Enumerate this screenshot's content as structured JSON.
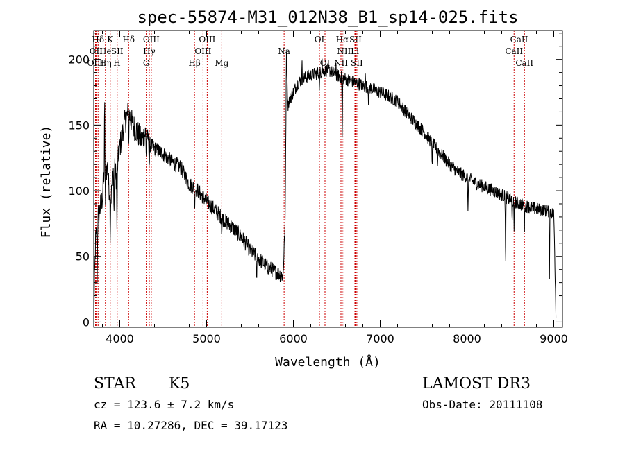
{
  "chart_data": {
    "type": "line",
    "title": "spec-55874-M31_012N38_B1_sp14-025.fits",
    "xlabel": "Wavelength (Å)",
    "ylabel": "Flux (relative)",
    "xlim": [
      3700,
      9100
    ],
    "ylim": [
      -4,
      222
    ],
    "xticks": [
      4000,
      5000,
      6000,
      7000,
      8000,
      9000
    ],
    "yticks": [
      0,
      50,
      100,
      150,
      200
    ],
    "grid": false,
    "legend": "none",
    "line_color": "#000000",
    "marker_color": "#cc0000",
    "spectrum_nodes": [
      [
        3700,
        5
      ],
      [
        3720,
        60
      ],
      [
        3750,
        80
      ],
      [
        3800,
        95
      ],
      [
        3830,
        125
      ],
      [
        3870,
        105
      ],
      [
        3900,
        95
      ],
      [
        3930,
        120
      ],
      [
        3960,
        110
      ],
      [
        3990,
        130
      ],
      [
        4050,
        150
      ],
      [
        4100,
        160
      ],
      [
        4150,
        150
      ],
      [
        4200,
        145
      ],
      [
        4250,
        138
      ],
      [
        4300,
        145
      ],
      [
        4350,
        135
      ],
      [
        4400,
        132
      ],
      [
        4500,
        128
      ],
      [
        4600,
        122
      ],
      [
        4700,
        118
      ],
      [
        4800,
        105
      ],
      [
        4900,
        100
      ],
      [
        5000,
        92
      ],
      [
        5100,
        85
      ],
      [
        5200,
        78
      ],
      [
        5300,
        72
      ],
      [
        5400,
        65
      ],
      [
        5500,
        55
      ],
      [
        5600,
        48
      ],
      [
        5700,
        42
      ],
      [
        5800,
        38
      ],
      [
        5880,
        35
      ],
      [
        5905,
        75
      ],
      [
        5920,
        210
      ],
      [
        5935,
        165
      ],
      [
        5960,
        170
      ],
      [
        6000,
        175
      ],
      [
        6050,
        182
      ],
      [
        6100,
        185
      ],
      [
        6200,
        188
      ],
      [
        6300,
        190
      ],
      [
        6400,
        192
      ],
      [
        6500,
        188
      ],
      [
        6600,
        185
      ],
      [
        6700,
        183
      ],
      [
        6800,
        180
      ],
      [
        6900,
        178
      ],
      [
        7000,
        175
      ],
      [
        7100,
        172
      ],
      [
        7200,
        168
      ],
      [
        7300,
        160
      ],
      [
        7400,
        152
      ],
      [
        7500,
        145
      ],
      [
        7600,
        136
      ],
      [
        7700,
        128
      ],
      [
        7800,
        120
      ],
      [
        7900,
        114
      ],
      [
        8000,
        110
      ],
      [
        8100,
        106
      ],
      [
        8200,
        103
      ],
      [
        8300,
        100
      ],
      [
        8400,
        97
      ],
      [
        8500,
        93
      ],
      [
        8600,
        90
      ],
      [
        8700,
        88
      ],
      [
        8800,
        86
      ],
      [
        8900,
        85
      ],
      [
        8950,
        84
      ],
      [
        9000,
        82
      ],
      [
        9010,
        55
      ],
      [
        9025,
        5
      ]
    ],
    "absorption_dips": [
      {
        "x": 3740,
        "depth": 45
      },
      {
        "x": 3835,
        "depth": 40
      },
      {
        "x": 3890,
        "depth": 35
      },
      {
        "x": 3933,
        "depth": 45
      },
      {
        "x": 3968,
        "depth": 50
      },
      {
        "x": 4102,
        "depth": 25
      },
      {
        "x": 4305,
        "depth": 20
      },
      {
        "x": 4340,
        "depth": 20
      },
      {
        "x": 4861,
        "depth": 18
      },
      {
        "x": 5175,
        "depth": 12
      },
      {
        "x": 5577,
        "depth": 25
      },
      {
        "x": 6300,
        "depth": 15
      },
      {
        "x": 6563,
        "depth": 55
      },
      {
        "x": 6867,
        "depth": 15
      },
      {
        "x": 7600,
        "depth": 20
      },
      {
        "x": 7660,
        "depth": 12
      },
      {
        "x": 8012,
        "depth": 30
      },
      {
        "x": 8445,
        "depth": 60
      },
      {
        "x": 8520,
        "depth": 20
      },
      {
        "x": 8542,
        "depth": 25
      },
      {
        "x": 8662,
        "depth": 18
      },
      {
        "x": 8950,
        "depth": 50
      }
    ],
    "emission_spikes": [
      {
        "x": 3825,
        "height": 50
      },
      {
        "x": 3860,
        "height": 20
      },
      {
        "x": 6100,
        "height": 10
      },
      {
        "x": 6330,
        "height": 12
      },
      {
        "x": 6490,
        "height": 10
      },
      {
        "x": 6830,
        "height": 8
      }
    ],
    "line_markers": [
      {
        "label": "Hδ",
        "x": 3750,
        "row": 0
      },
      {
        "label": "K",
        "x": 3890,
        "row": 0
      },
      {
        "label": "Hδ",
        "x": 4102,
        "row": 0
      },
      {
        "label": "OIII",
        "x": 4363,
        "row": 0
      },
      {
        "label": "OIII",
        "x": 5007,
        "row": 0
      },
      {
        "label": "OI",
        "x": 6300,
        "row": 0
      },
      {
        "label": "Hα",
        "x": 6563,
        "row": 0
      },
      {
        "label": "SII",
        "x": 6716,
        "row": 0
      },
      {
        "label": "CaII",
        "x": 8600,
        "row": 0
      },
      {
        "label": "OII",
        "x": 3727,
        "row": 1
      },
      {
        "label": "He",
        "x": 3835,
        "row": 1
      },
      {
        "label": "SII",
        "x": 3970,
        "row": 1
      },
      {
        "label": "Hγ",
        "x": 4340,
        "row": 1
      },
      {
        "label": "OIII",
        "x": 4959,
        "row": 1
      },
      {
        "label": "Na",
        "x": 5893,
        "row": 1
      },
      {
        "label": "NII",
        "x": 6583,
        "row": 1
      },
      {
        "label": "Li",
        "x": 6708,
        "row": 1
      },
      {
        "label": "CaII",
        "x": 8542,
        "row": 1
      },
      {
        "label": "OIII",
        "x": 3720,
        "row": 2
      },
      {
        "label": "Hη",
        "x": 3835,
        "row": 2
      },
      {
        "label": "H",
        "x": 3968,
        "row": 2
      },
      {
        "label": "G",
        "x": 4305,
        "row": 2
      },
      {
        "label": "Hβ",
        "x": 4861,
        "row": 2
      },
      {
        "label": "Mg",
        "x": 5175,
        "row": 2
      },
      {
        "label": "OI",
        "x": 6364,
        "row": 2
      },
      {
        "label": "NII",
        "x": 6548,
        "row": 2
      },
      {
        "label": "SII",
        "x": 6731,
        "row": 2
      },
      {
        "label": "CaII",
        "x": 8662,
        "row": 2
      }
    ]
  },
  "info": {
    "object_class": "STAR",
    "subclass": "K5",
    "survey": "LAMOST DR3",
    "redshift": "cz = 123.6 ± 7.2 km/s",
    "obs_date": "Obs-Date: 20111108",
    "coords": "RA =  10.27286, DEC =  39.17123"
  }
}
